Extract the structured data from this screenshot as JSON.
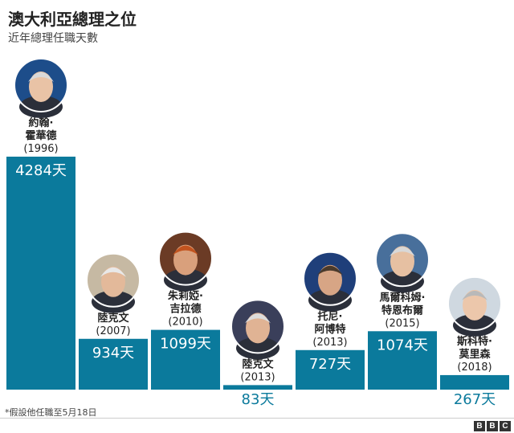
{
  "title": "澳大利亞總理之位",
  "subtitle": "近年總理任職天數",
  "footnote": "*假設他任職至5月18日",
  "logo": {
    "letters": [
      "B",
      "B",
      "C"
    ]
  },
  "colors": {
    "bar": "#0b7a9c",
    "bar_text_inside": "#ffffff",
    "bar_text_outside": "#0b7a9c",
    "label": "#222222"
  },
  "chart_data": {
    "type": "bar",
    "title": "澳大利亞總理之位",
    "subtitle": "近年總理任職天數",
    "categories": [
      "約翰·霍華德 (1996)",
      "陸克文 (2007)",
      "朱莉婭·吉拉德 (2010)",
      "陸克文 (2013)",
      "托尼·阿博特 (2013)",
      "馬爾科姆·特恩布爾 (2015)",
      "斯科特·莫里森 (2018)"
    ],
    "series": [
      {
        "values": [
          4284,
          934,
          1099,
          83,
          727,
          1074,
          267
        ]
      }
    ],
    "bars": [
      {
        "name_lines": [
          "約翰·",
          "霍華德"
        ],
        "year": "(1996)",
        "value": 4284,
        "value_label": "4284天",
        "label_pos": "inside",
        "photo": "portrait-howard"
      },
      {
        "name_lines": [
          "陸克文"
        ],
        "year": "(2007)",
        "value": 934,
        "value_label": "934天",
        "label_pos": "inside",
        "photo": "portrait-rudd"
      },
      {
        "name_lines": [
          "朱莉婭·",
          "吉拉德"
        ],
        "year": "(2010)",
        "value": 1099,
        "value_label": "1099天",
        "label_pos": "inside",
        "photo": "portrait-gillard"
      },
      {
        "name_lines": [
          "陸克文"
        ],
        "year": "(2013)",
        "value": 83,
        "value_label": "83天",
        "label_pos": "outside",
        "photo": "portrait-rudd"
      },
      {
        "name_lines": [
          "托尼·",
          "阿博特"
        ],
        "year": "(2013)",
        "value": 727,
        "value_label": "727天",
        "label_pos": "inside",
        "photo": "portrait-abbott"
      },
      {
        "name_lines": [
          "馬爾科姆·",
          "特恩布爾"
        ],
        "year": "(2015)",
        "value": 1074,
        "value_label": "1074天",
        "label_pos": "inside",
        "photo": "portrait-turnbull"
      },
      {
        "name_lines": [
          "斯科特·",
          "莫里森"
        ],
        "year": "(2018)",
        "value": 267,
        "value_label": "267天",
        "label_pos": "outside",
        "photo": "portrait-morrison"
      }
    ],
    "xlabel": "",
    "ylabel": "",
    "grid": false,
    "legend": "none"
  }
}
